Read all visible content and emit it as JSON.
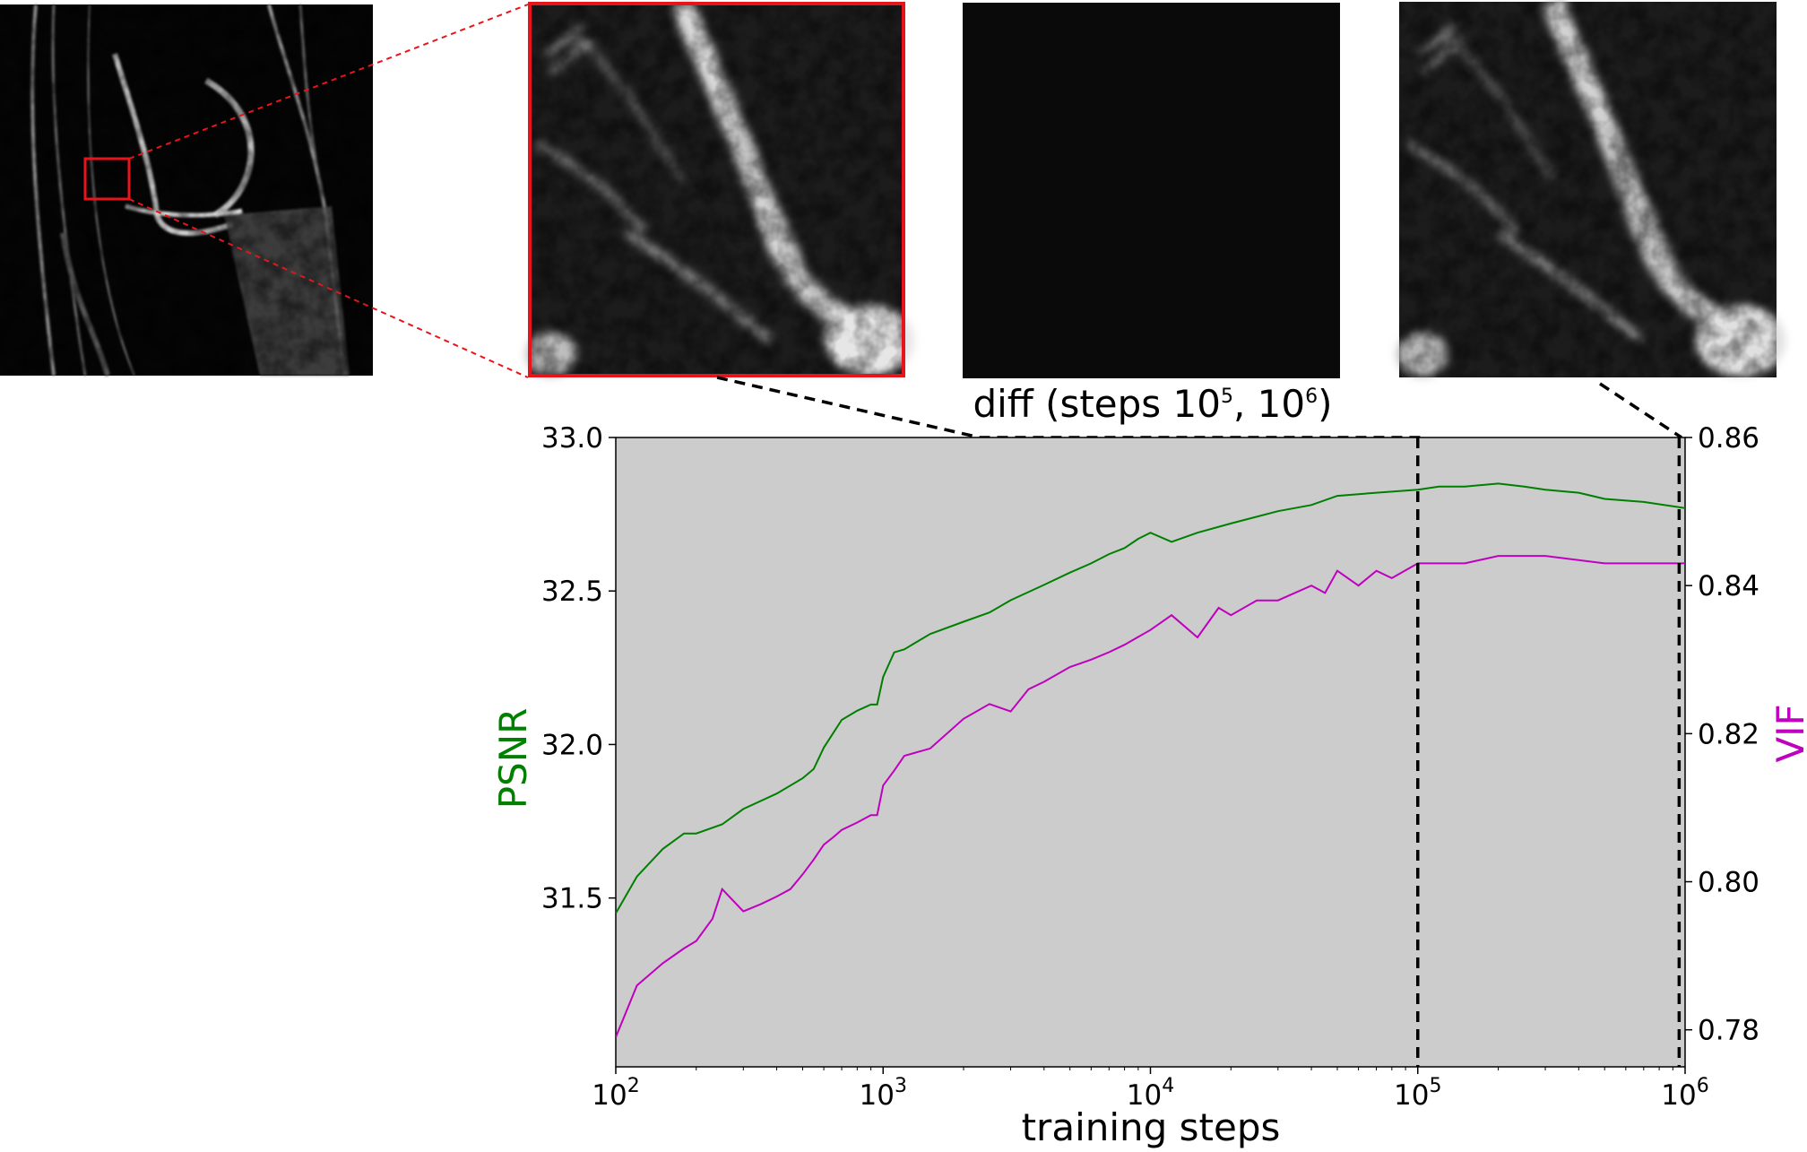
{
  "colors": {
    "psnr": "#008000",
    "vif": "#bf00bf",
    "plot_bg": "#cccccc",
    "zoom_box": "#e8141b",
    "black": "#000000"
  },
  "images": {
    "overview": {
      "name": "knee-mri-overview"
    },
    "zoom_step_1e5": {
      "name": "zoomed-crop-step-1e5"
    },
    "diff": {
      "name": "difference-image"
    },
    "zoom_step_1e6": {
      "name": "zoomed-crop-step-1e6"
    }
  },
  "diff_label": {
    "text": "diff (steps 10",
    "exp1": "5",
    "mid": ", 10",
    "exp2": "6",
    "end": ")"
  },
  "chart_data": {
    "type": "line",
    "xscale": "log",
    "xlabel": "training steps",
    "xlim": [
      100,
      1000000
    ],
    "xticks": [
      {
        "base": "10",
        "exp": "2",
        "value": 100
      },
      {
        "base": "10",
        "exp": "3",
        "value": 1000
      },
      {
        "base": "10",
        "exp": "4",
        "value": 10000
      },
      {
        "base": "10",
        "exp": "5",
        "value": 100000
      },
      {
        "base": "10",
        "exp": "6",
        "value": 1000000
      }
    ],
    "y_left": {
      "label": "PSNR",
      "lim": [
        30.95,
        33.0
      ],
      "ticks": [
        "31.5",
        "32.0",
        "32.5",
        "33.0"
      ]
    },
    "y_right": {
      "label": "VIF",
      "lim": [
        0.775,
        0.86
      ],
      "ticks": [
        "0.78",
        "0.80",
        "0.82",
        "0.84",
        "0.86"
      ]
    },
    "vlines": [
      100000,
      950000
    ],
    "grid": false,
    "series": [
      {
        "name": "PSNR",
        "axis": "left",
        "x": [
          100,
          120,
          150,
          180,
          200,
          250,
          300,
          400,
          500,
          550,
          600,
          700,
          800,
          900,
          950,
          1000,
          1100,
          1200,
          1500,
          2000,
          2500,
          3000,
          4000,
          5000,
          6000,
          7000,
          8000,
          9000,
          10000,
          12000,
          15000,
          20000,
          30000,
          40000,
          50000,
          70000,
          100000,
          120000,
          150000,
          200000,
          250000,
          300000,
          400000,
          500000,
          700000,
          1000000
        ],
        "y": [
          31.45,
          31.57,
          31.66,
          31.71,
          31.71,
          31.74,
          31.79,
          31.84,
          31.89,
          31.92,
          31.99,
          32.08,
          32.11,
          32.13,
          32.13,
          32.22,
          32.3,
          32.31,
          32.36,
          32.4,
          32.43,
          32.47,
          32.52,
          32.56,
          32.59,
          32.62,
          32.64,
          32.67,
          32.69,
          32.66,
          32.69,
          32.72,
          32.76,
          32.78,
          32.81,
          32.82,
          32.83,
          32.84,
          32.84,
          32.85,
          32.84,
          32.83,
          32.82,
          32.8,
          32.79,
          32.77
        ]
      },
      {
        "name": "VIF",
        "axis": "right",
        "x": [
          100,
          120,
          150,
          180,
          200,
          230,
          250,
          300,
          350,
          400,
          450,
          500,
          550,
          600,
          650,
          700,
          800,
          900,
          950,
          1000,
          1100,
          1200,
          1500,
          2000,
          2500,
          3000,
          3500,
          4000,
          5000,
          6000,
          7000,
          8000,
          10000,
          12000,
          15000,
          18000,
          20000,
          25000,
          30000,
          40000,
          45000,
          50000,
          60000,
          70000,
          80000,
          100000,
          120000,
          150000,
          200000,
          300000,
          500000,
          700000,
          1000000
        ],
        "y": [
          0.779,
          0.786,
          0.789,
          0.791,
          0.792,
          0.795,
          0.799,
          0.796,
          0.797,
          0.798,
          0.799,
          0.801,
          0.803,
          0.805,
          0.806,
          0.807,
          0.808,
          0.809,
          0.809,
          0.813,
          0.815,
          0.817,
          0.818,
          0.822,
          0.824,
          0.823,
          0.826,
          0.827,
          0.829,
          0.83,
          0.831,
          0.832,
          0.834,
          0.836,
          0.833,
          0.837,
          0.836,
          0.838,
          0.838,
          0.84,
          0.839,
          0.842,
          0.84,
          0.842,
          0.841,
          0.843,
          0.843,
          0.843,
          0.844,
          0.844,
          0.843,
          0.843,
          0.843
        ]
      }
    ]
  }
}
